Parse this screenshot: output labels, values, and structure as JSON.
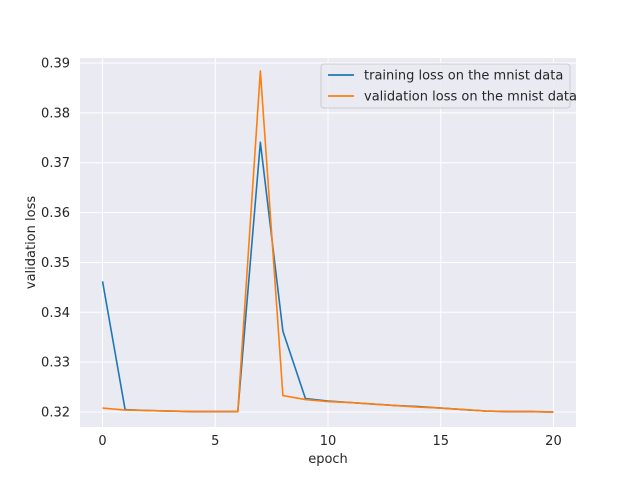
{
  "chart_data": {
    "type": "line",
    "title": "",
    "xlabel": "epoch",
    "ylabel": "validation loss",
    "xlim": [
      -1,
      21
    ],
    "ylim": [
      0.317,
      0.391
    ],
    "xticks": [
      0,
      5,
      10,
      15,
      20
    ],
    "yticks": [
      0.32,
      0.33,
      0.34,
      0.35,
      0.36,
      0.37,
      0.38,
      0.39
    ],
    "grid": true,
    "legend_position": "top-right",
    "x": [
      0,
      1,
      2,
      3,
      4,
      5,
      6,
      7,
      8,
      9,
      10,
      11,
      12,
      13,
      14,
      15,
      16,
      17,
      18,
      19,
      20
    ],
    "series": [
      {
        "name": "training loss on the mnist data",
        "color": "#1f77b4",
        "values": [
          0.3462,
          0.3205,
          0.3203,
          0.3202,
          0.3201,
          0.3201,
          0.3201,
          0.3741,
          0.3362,
          0.3227,
          0.3222,
          0.3219,
          0.3216,
          0.3213,
          0.3211,
          0.3208,
          0.3205,
          0.3202,
          0.3201,
          0.3201,
          0.32
        ]
      },
      {
        "name": "validation loss on the mnist data",
        "color": "#ff7f0e",
        "values": [
          0.3208,
          0.3204,
          0.3203,
          0.3202,
          0.3201,
          0.3201,
          0.3201,
          0.3884,
          0.3233,
          0.3225,
          0.3221,
          0.3219,
          0.3216,
          0.3213,
          0.321,
          0.3208,
          0.3205,
          0.3202,
          0.3201,
          0.3201,
          0.32
        ]
      }
    ],
    "background_color": "#eaeaf2",
    "grid_color": "#ffffff"
  }
}
